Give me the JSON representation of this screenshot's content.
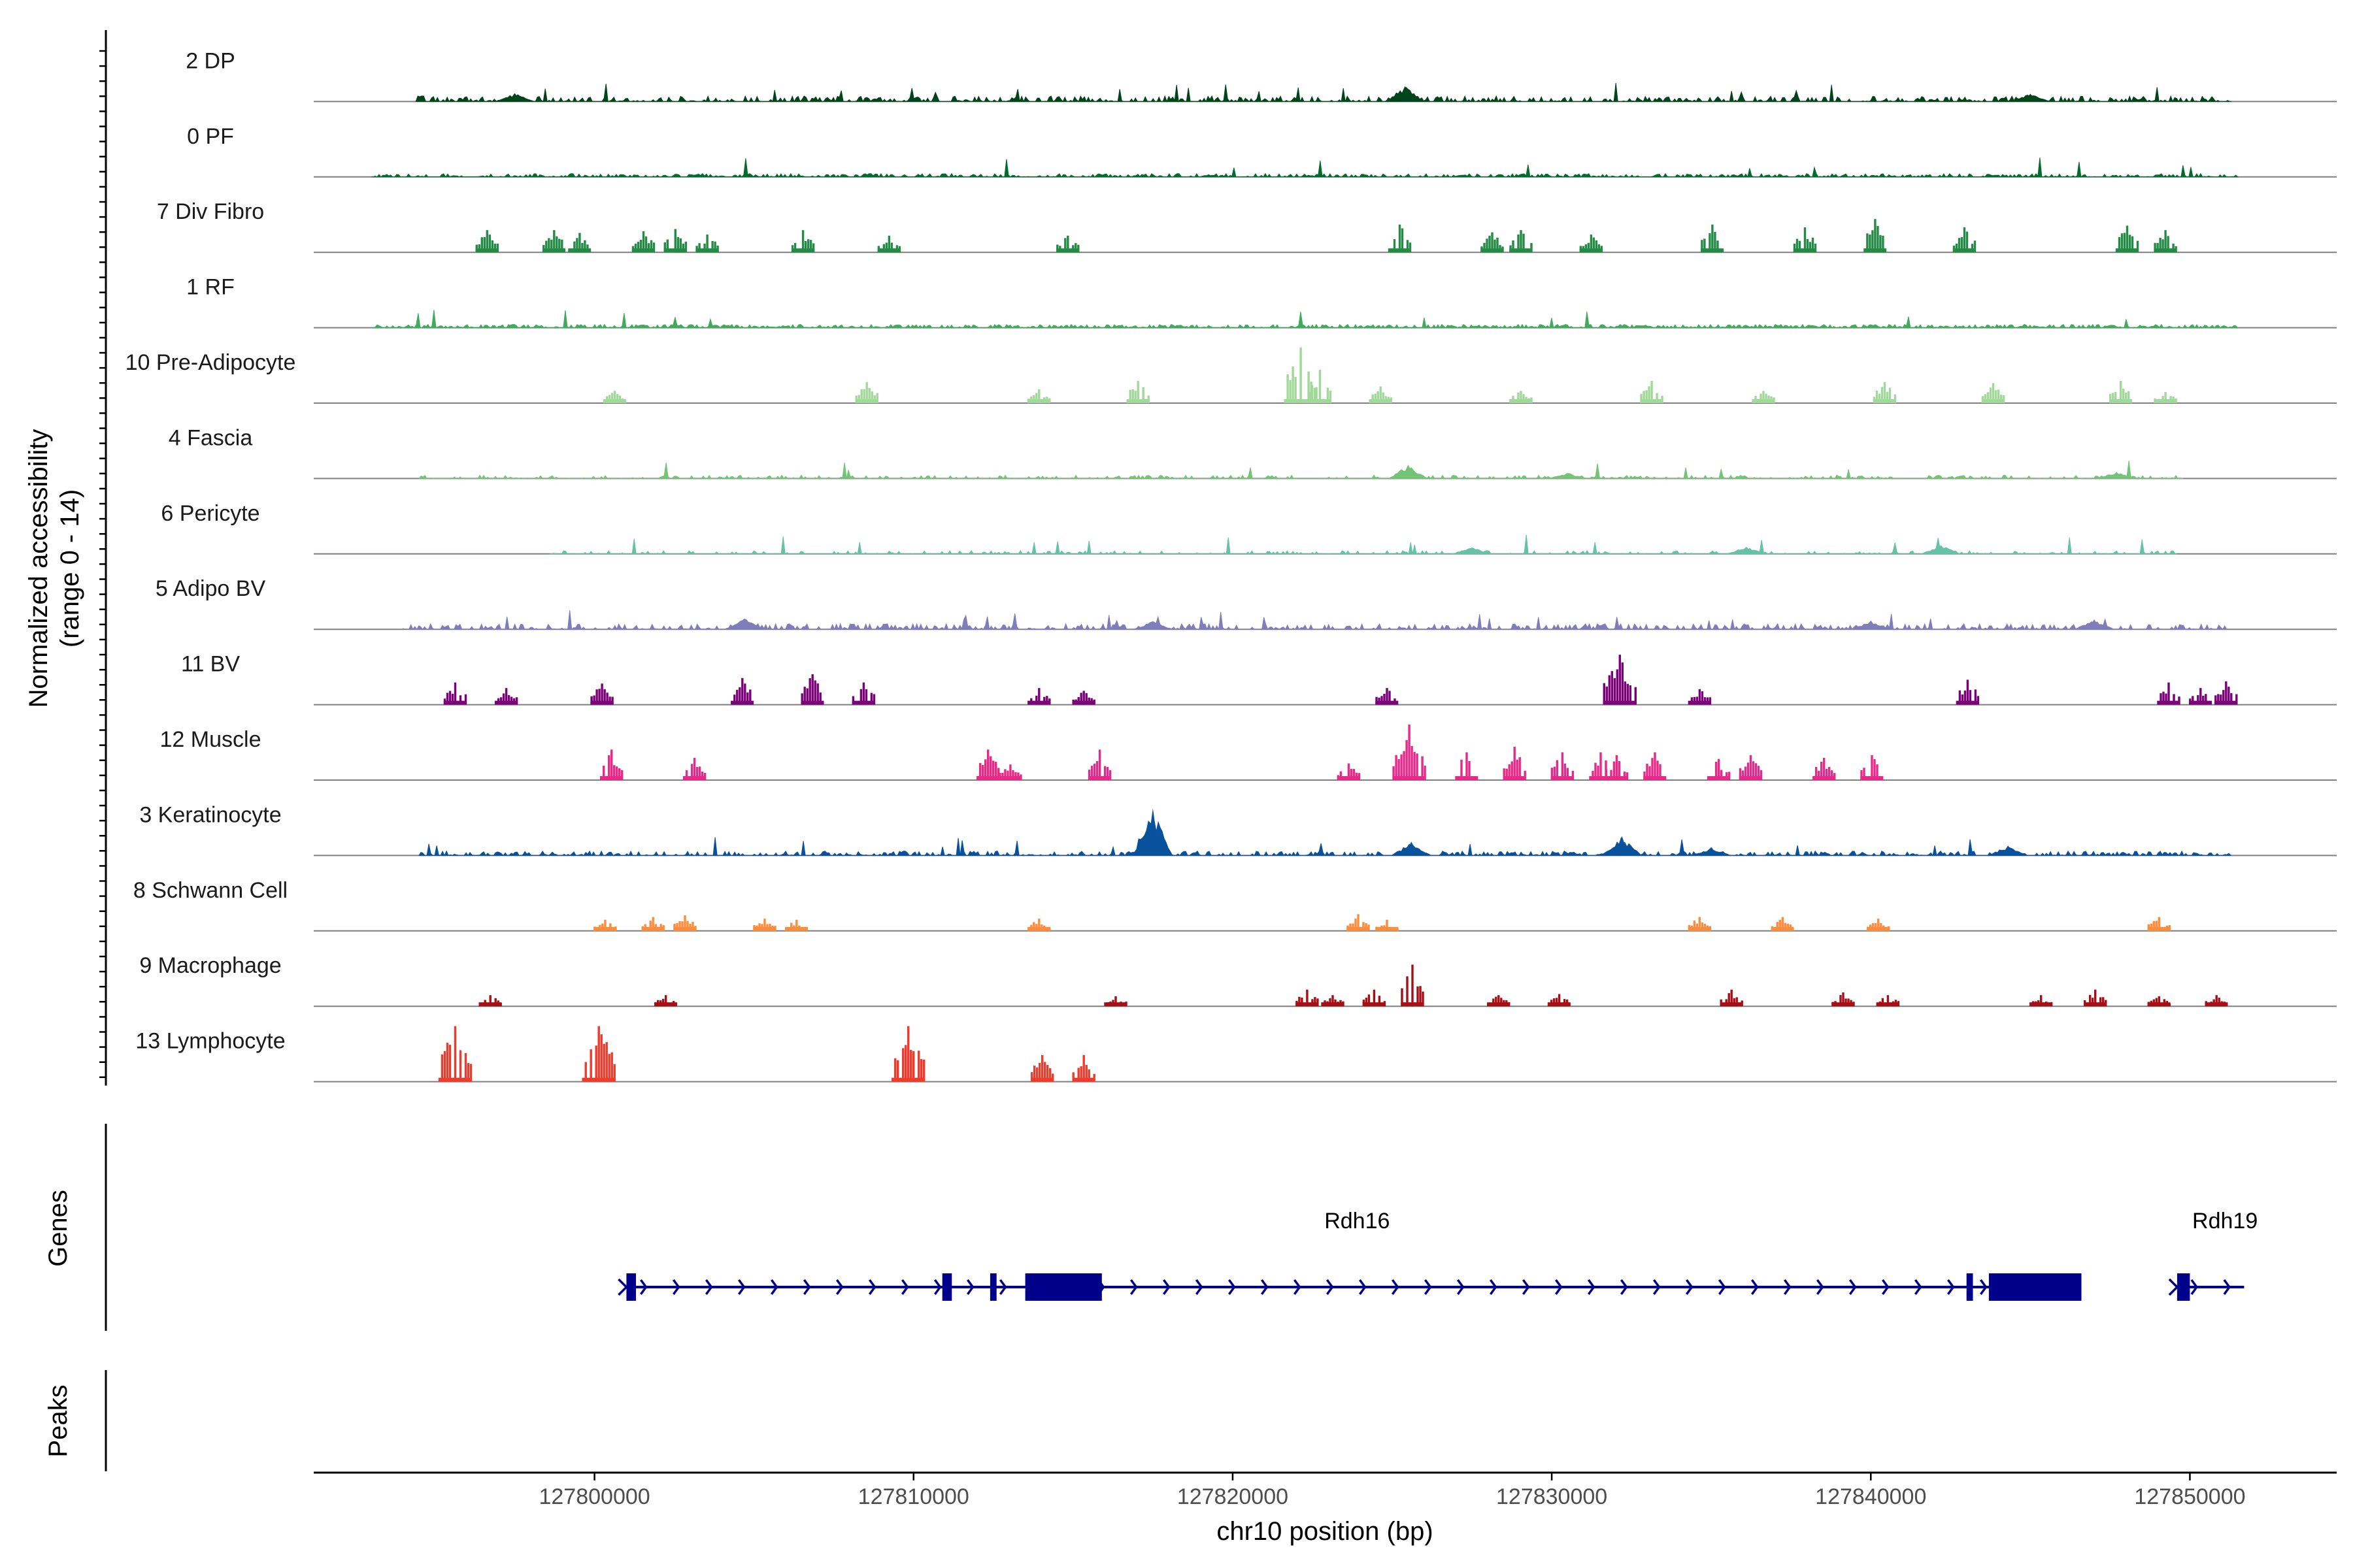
{
  "chart_data": {
    "type": "coverage",
    "chromosome": "chr10",
    "xlabel": "chr10 position (bp)",
    "ylabel_line1": "Normalized accessibility",
    "ylabel_line2": "(range 0 - 14)",
    "xlim": [
      127791200,
      127854600
    ],
    "x_ticks": [
      127800000,
      127810000,
      127820000,
      127830000,
      127840000,
      127850000
    ],
    "x_tick_labels": [
      "127800000",
      "127810000",
      "127820000",
      "127830000",
      "127840000",
      "127850000"
    ],
    "genes_title": "Genes",
    "peaks_title": "Peaks",
    "tracks": [
      {
        "name": "2 DP",
        "color": "#00441b",
        "mode": "noise",
        "start": 127794400,
        "end": 127851300,
        "density": 0.55,
        "base": 0.1,
        "peaks": [
          [
            127797500,
            0.15
          ],
          [
            127825400,
            0.28
          ],
          [
            127845000,
            0.14
          ]
        ]
      },
      {
        "name": "0 PF",
        "color": "#006d2c",
        "mode": "noise",
        "start": 127793000,
        "end": 127851500,
        "density": 0.6,
        "base": 0.06,
        "peaks": []
      },
      {
        "name": "7 Div Fibro",
        "color": "#238b45",
        "mode": "islands",
        "peaks": [
          [
            127796600,
            0.4
          ],
          [
            127798700,
            0.4
          ],
          [
            127799500,
            0.35
          ],
          [
            127801500,
            0.38
          ],
          [
            127802500,
            0.42
          ],
          [
            127803500,
            0.32
          ],
          [
            127806500,
            0.4
          ],
          [
            127809200,
            0.3
          ],
          [
            127814800,
            0.3
          ],
          [
            127825200,
            0.5
          ],
          [
            127828100,
            0.36
          ],
          [
            127829000,
            0.4
          ],
          [
            127831200,
            0.32
          ],
          [
            127835000,
            0.5
          ],
          [
            127837900,
            0.45
          ],
          [
            127840100,
            0.6
          ],
          [
            127842900,
            0.45
          ],
          [
            127848000,
            0.48
          ],
          [
            127849200,
            0.4
          ]
        ]
      },
      {
        "name": "1 RF",
        "color": "#41ab5d",
        "mode": "noise",
        "start": 127793000,
        "end": 127851500,
        "density": 0.7,
        "base": 0.06,
        "peaks": []
      },
      {
        "name": "10 Pre-Adipocyte",
        "color": "#a1d99b",
        "mode": "islands",
        "peaks": [
          [
            127800600,
            0.22
          ],
          [
            127808500,
            0.38
          ],
          [
            127813900,
            0.25
          ],
          [
            127817000,
            0.4
          ],
          [
            127822100,
            1.0
          ],
          [
            127822700,
            0.6
          ],
          [
            127824600,
            0.3
          ],
          [
            127829000,
            0.22
          ],
          [
            127833100,
            0.4
          ],
          [
            127836600,
            0.22
          ],
          [
            127840400,
            0.38
          ],
          [
            127843800,
            0.36
          ],
          [
            127847800,
            0.4
          ],
          [
            127849200,
            0.2
          ]
        ]
      },
      {
        "name": "4 Fascia",
        "color": "#74c476",
        "mode": "noise",
        "start": 127794500,
        "end": 127849800,
        "density": 0.35,
        "base": 0.06,
        "peaks": [
          [
            127825500,
            0.25
          ],
          [
            127830500,
            0.1
          ],
          [
            127847700,
            0.12
          ]
        ]
      },
      {
        "name": "6 Pericyte",
        "color": "#66c2a4",
        "mode": "noise",
        "start": 127798600,
        "end": 127849600,
        "density": 0.28,
        "base": 0.06,
        "peaks": [
          [
            127827500,
            0.12
          ],
          [
            127836100,
            0.13
          ],
          [
            127842200,
            0.16
          ]
        ]
      },
      {
        "name": "5 Adipo BV",
        "color": "#807dba",
        "mode": "noise",
        "start": 127794000,
        "end": 127851200,
        "density": 0.45,
        "base": 0.1,
        "peaks": [
          [
            127804700,
            0.2
          ],
          [
            127817500,
            0.15
          ],
          [
            127840000,
            0.16
          ],
          [
            127847000,
            0.18
          ]
        ]
      },
      {
        "name": "11 BV",
        "color": "#7a0177",
        "mode": "islands",
        "peaks": [
          [
            127795600,
            0.4
          ],
          [
            127797200,
            0.3
          ],
          [
            127800200,
            0.38
          ],
          [
            127804600,
            0.48
          ],
          [
            127806800,
            0.55
          ],
          [
            127808400,
            0.4
          ],
          [
            127813900,
            0.3
          ],
          [
            127815300,
            0.25
          ],
          [
            127824800,
            0.3
          ],
          [
            127832100,
            0.9
          ],
          [
            127834600,
            0.28
          ],
          [
            127843000,
            0.45
          ],
          [
            127849300,
            0.4
          ],
          [
            127850300,
            0.3
          ],
          [
            127851100,
            0.42
          ]
        ]
      },
      {
        "name": "12 Muscle",
        "color": "#e7298a",
        "mode": "islands",
        "peaks": [
          [
            127800500,
            0.55
          ],
          [
            127803100,
            0.4
          ],
          [
            127812300,
            0.55
          ],
          [
            127813000,
            0.28
          ],
          [
            127815800,
            0.55
          ],
          [
            127823600,
            0.3
          ],
          [
            127825500,
            1.0
          ],
          [
            127827300,
            0.5
          ],
          [
            127828800,
            0.6
          ],
          [
            127830300,
            0.5
          ],
          [
            127831500,
            0.5
          ],
          [
            127832000,
            0.45
          ],
          [
            127833200,
            0.5
          ],
          [
            127835200,
            0.38
          ],
          [
            127836200,
            0.45
          ],
          [
            127838500,
            0.4
          ],
          [
            127840000,
            0.45
          ]
        ]
      },
      {
        "name": "3 Keratinocyte",
        "color": "#08519c",
        "mode": "noise",
        "start": 127794500,
        "end": 127851300,
        "density": 0.55,
        "base": 0.08,
        "peaks": [
          [
            127817500,
            0.85
          ],
          [
            127825600,
            0.25
          ],
          [
            127832200,
            0.35
          ],
          [
            127835000,
            0.15
          ],
          [
            127844300,
            0.18
          ]
        ]
      },
      {
        "name": "8 Schwann Cell",
        "color": "#fd8d3c",
        "mode": "islands",
        "peaks": [
          [
            127800300,
            0.2
          ],
          [
            127801800,
            0.25
          ],
          [
            127802800,
            0.28
          ],
          [
            127805300,
            0.22
          ],
          [
            127806300,
            0.2
          ],
          [
            127813900,
            0.22
          ],
          [
            127823900,
            0.3
          ],
          [
            127824800,
            0.2
          ],
          [
            127834600,
            0.25
          ],
          [
            127837200,
            0.25
          ],
          [
            127840200,
            0.22
          ],
          [
            127849000,
            0.25
          ]
        ]
      },
      {
        "name": "9 Macrophage",
        "color": "#a50f15",
        "mode": "islands",
        "peaks": [
          [
            127796700,
            0.2
          ],
          [
            127802200,
            0.2
          ],
          [
            127816300,
            0.18
          ],
          [
            127822300,
            0.3
          ],
          [
            127823100,
            0.2
          ],
          [
            127824400,
            0.3
          ],
          [
            127825600,
            0.75
          ],
          [
            127828300,
            0.2
          ],
          [
            127830200,
            0.22
          ],
          [
            127835600,
            0.3
          ],
          [
            127839100,
            0.25
          ],
          [
            127840500,
            0.2
          ],
          [
            127845300,
            0.2
          ],
          [
            127847000,
            0.3
          ],
          [
            127849000,
            0.18
          ],
          [
            127850800,
            0.2
          ]
        ]
      },
      {
        "name": "13 Lymphocyte",
        "color": "#ef3b2c",
        "mode": "islands",
        "peaks": [
          [
            127795600,
            1.0
          ],
          [
            127800100,
            1.0
          ],
          [
            127809800,
            1.0
          ],
          [
            127814000,
            0.48
          ],
          [
            127815300,
            0.48
          ]
        ]
      }
    ],
    "genes": [
      {
        "name": "Rdh16",
        "label_x": 127823900,
        "start": 127801000,
        "end": 127846600,
        "strand": "+",
        "exons": [
          [
            127801000,
            127801300
          ],
          [
            127810900,
            127811200
          ],
          [
            127812400,
            127812600
          ],
          [
            127813500,
            127815900
          ],
          [
            127843000,
            127843200
          ],
          [
            127843700,
            127846600
          ]
        ],
        "color": "#00008b"
      },
      {
        "name": "Rdh19",
        "label_x": 127851100,
        "start": 127849600,
        "end": 127851700,
        "strand": "+",
        "exons": [
          [
            127849600,
            127850000
          ]
        ],
        "color": "#00008b"
      }
    ]
  }
}
